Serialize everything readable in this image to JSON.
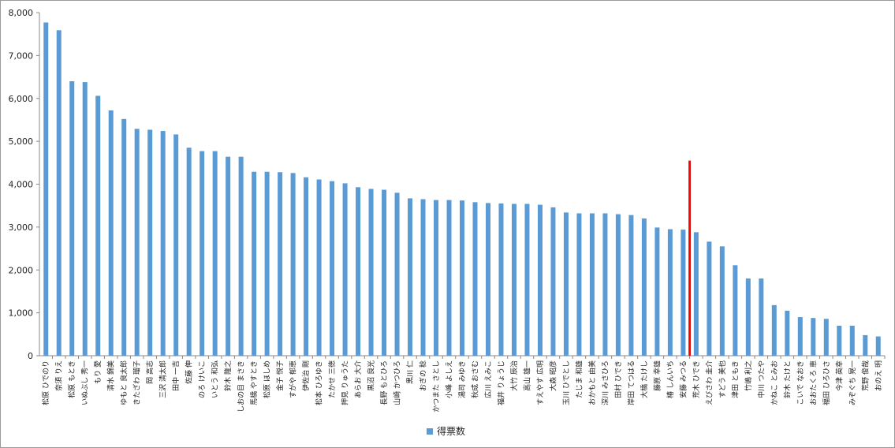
{
  "chart_data": {
    "type": "bar",
    "categories": [
      "松原 ひでのり",
      "奈須 りえ",
      "松原 もとき",
      "いぬぶし 秀一",
      "もり 愛",
      "清水 錦美",
      "ゆもと 良太郎",
      "きたざわ 瑠子",
      "岡 高志",
      "三沢 清太郎",
      "田中 一吉",
      "佐藤 伸",
      "のろ けいこ",
      "いとう 和弘",
      "鈴木 隆之",
      "しおの目 まさき",
      "馬橋 やすとき",
      "松原 ほしめ",
      "金子 悦子",
      "すがや 郁恵",
      "伊佐治 剛",
      "松本 ひろゆき",
      "たかせ 三徳",
      "押見 りゅうた",
      "あらお 大介",
      "黒沼 良光",
      "長野 もとひろ",
      "山崎 かつひろ",
      "黒川 仁",
      "おぎの 稔",
      "かつまた さとし",
      "小峰 よしえ",
      "湯司 みゆき",
      "秋成 おさむ",
      "広川 えみこ",
      "福井 りょうじ",
      "大竹 辰治",
      "高山 雄一",
      "すえやす 広明",
      "大森 昭彦",
      "玉川 ひでとし",
      "たじま 和雄",
      "おかもと 由美",
      "深川 みさひろ",
      "田村 ひでき",
      "岸田 てつはる",
      "大橋 たけし",
      "藤原 幸雄",
      "椿 しんいち",
      "安藤 みつる",
      "荒木 ひでき",
      "えびさわ 圭介",
      "すどう 美也",
      "津田 ともき",
      "竹嶋 利之",
      "中川 つたや",
      "かねこ とみお",
      "鈴木 たけと",
      "こいで なおき",
      "おおたくろ 恵",
      "福田 ひろひさ",
      "今津 英幸",
      "みぞぐち 晃一",
      "荒野 俊哉",
      "おのえ 明"
    ],
    "values": [
      7770,
      7590,
      6400,
      6380,
      6060,
      5720,
      5520,
      5290,
      5270,
      5240,
      5160,
      4850,
      4770,
      4770,
      4640,
      4640,
      4290,
      4290,
      4280,
      4260,
      4160,
      4110,
      4070,
      4020,
      3930,
      3890,
      3870,
      3800,
      3670,
      3650,
      3630,
      3630,
      3620,
      3580,
      3560,
      3550,
      3540,
      3540,
      3520,
      3460,
      3340,
      3320,
      3320,
      3320,
      3300,
      3280,
      3200,
      2990,
      2950,
      2940,
      2880,
      2660,
      2550,
      2110,
      1800,
      1800,
      1180,
      1050,
      900,
      880,
      860,
      700,
      700,
      480,
      450
    ],
    "series_name": "得票数",
    "ylim": [
      0,
      8000
    ],
    "yticks": [
      "0",
      "1,000",
      "2,000",
      "3,000",
      "4,000",
      "5,000",
      "6,000",
      "7,000",
      "8,000"
    ],
    "grid": false,
    "legend": "bottom",
    "bar_color": "#5b9bd5",
    "marker_line": {
      "after_category_index": 49,
      "value": 4550,
      "color": "#ff0000"
    }
  }
}
